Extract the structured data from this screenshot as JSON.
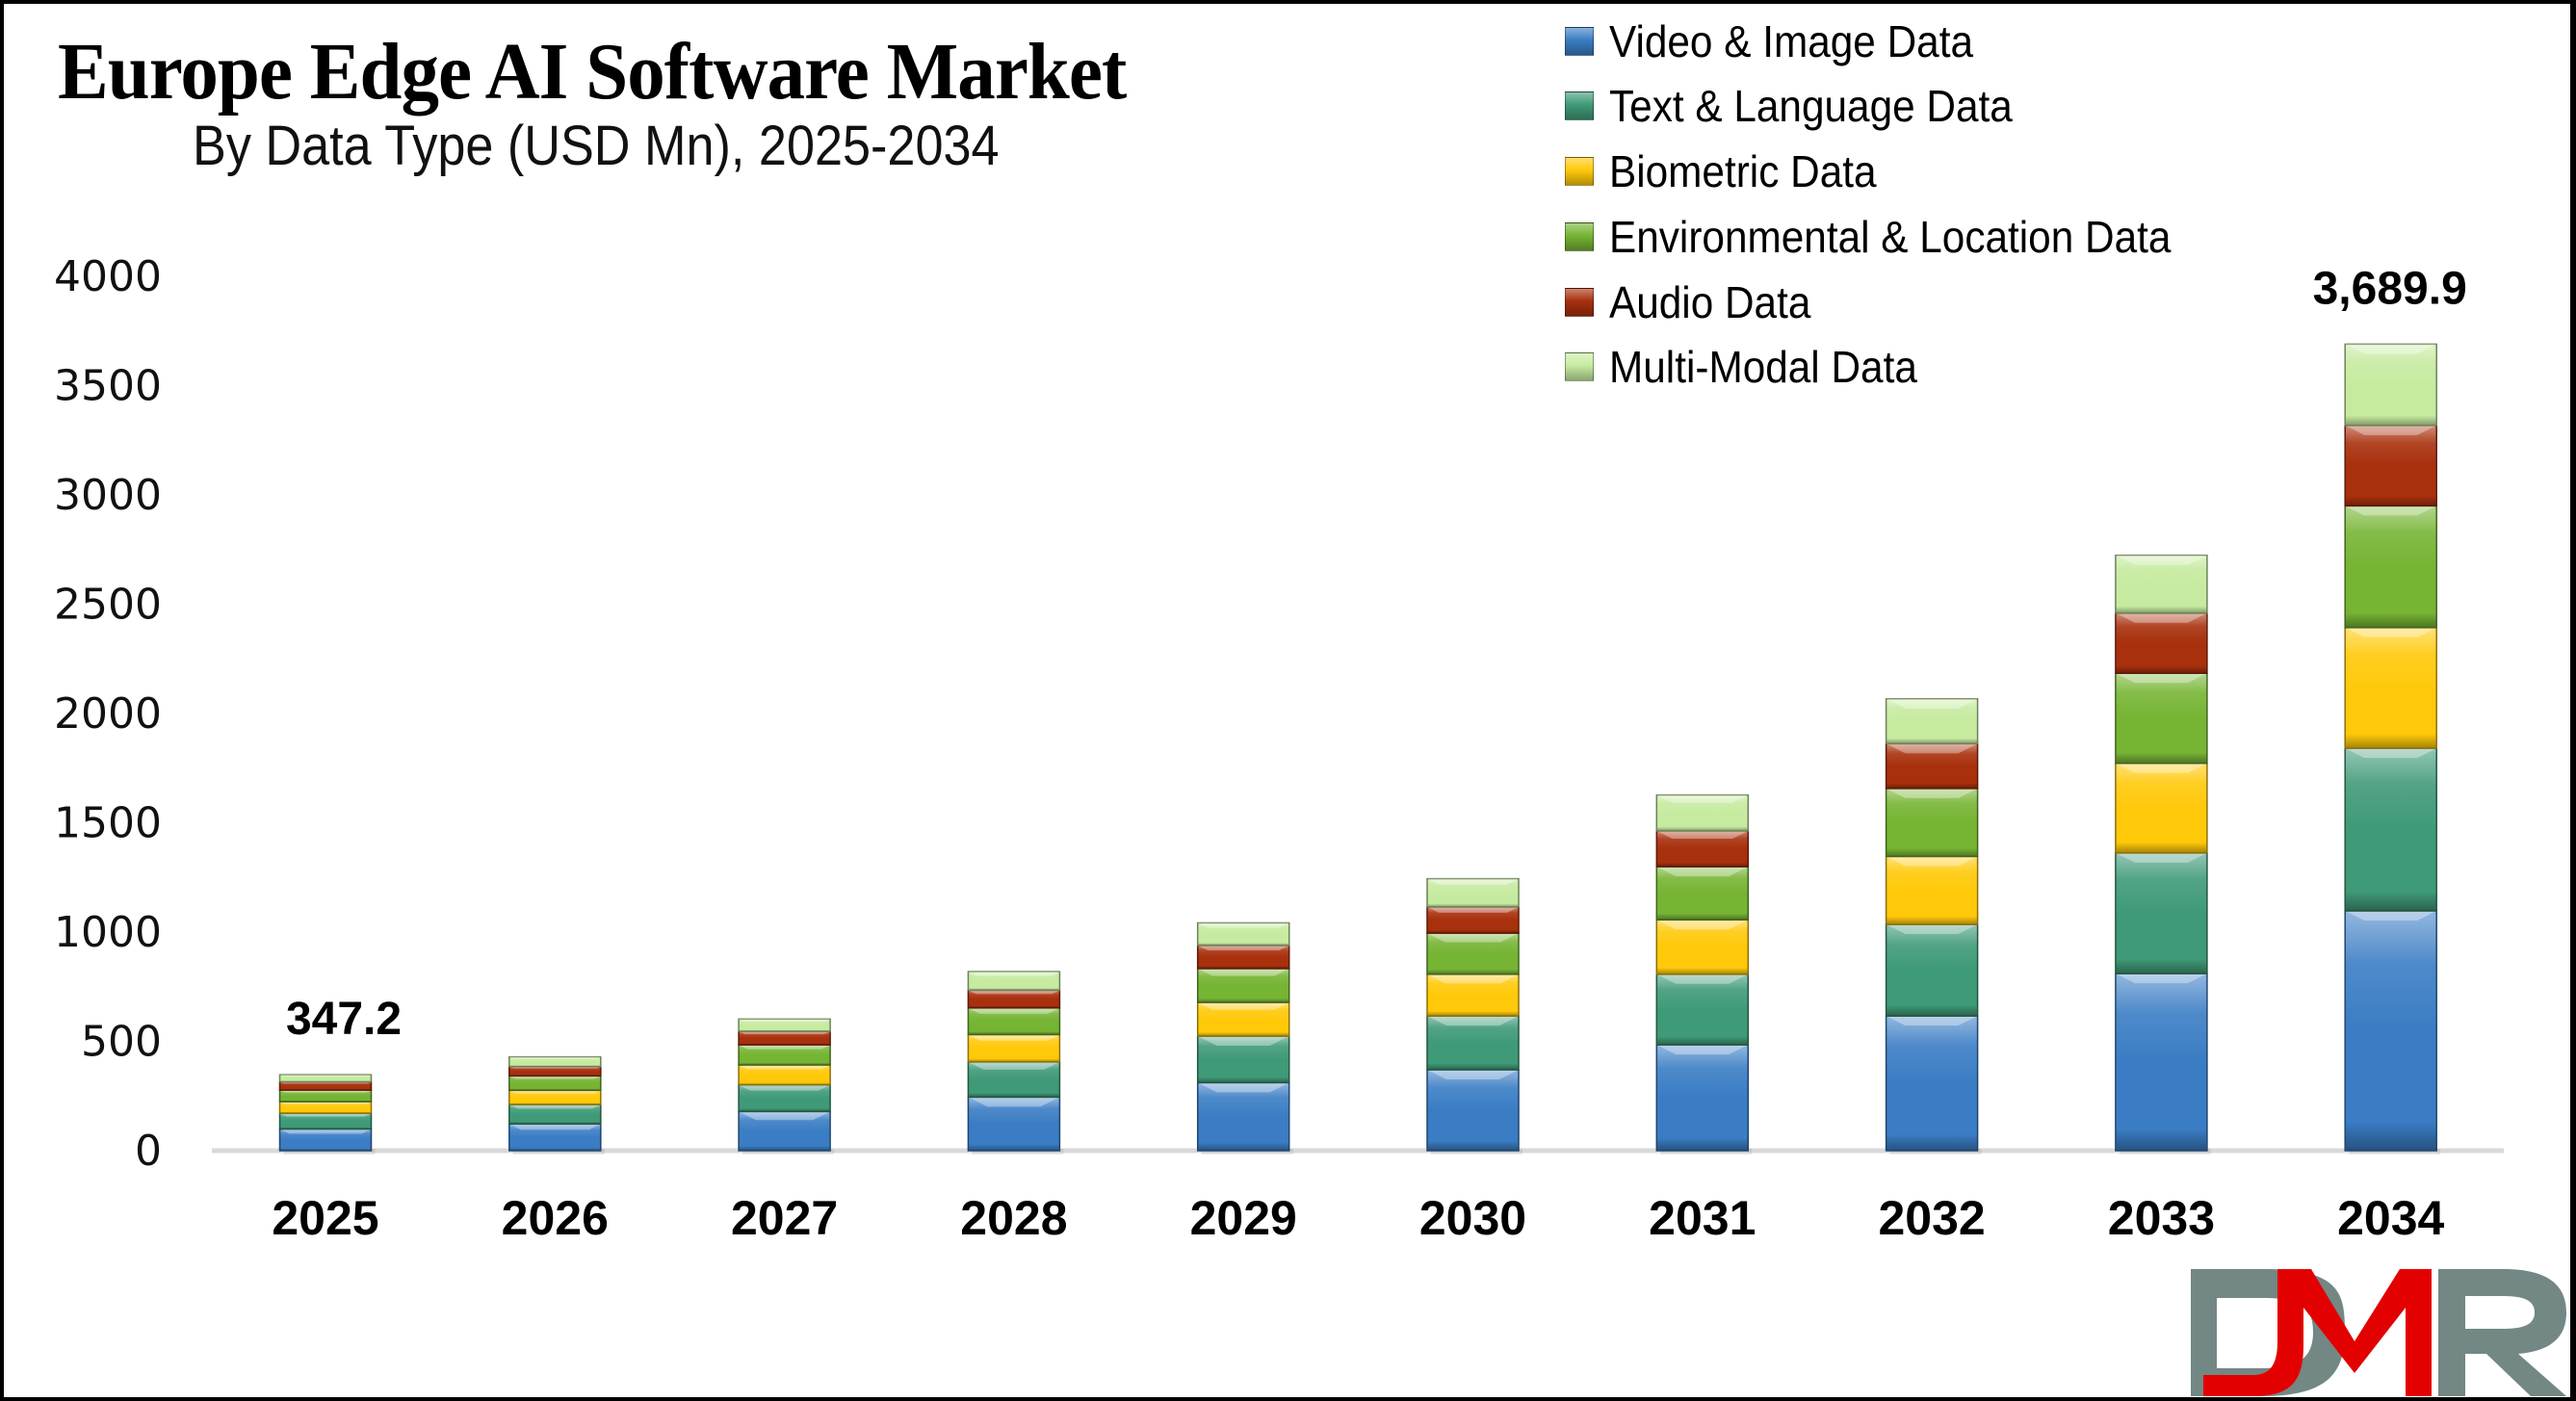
{
  "chart_data": {
    "type": "bar",
    "stacked": true,
    "title": "Europe Edge AI Software Market",
    "subtitle": "By Data Type (USD Mn), 2025-2034",
    "xlabel": "",
    "ylabel": "",
    "ylim": [
      0,
      4000
    ],
    "yticks": [
      0,
      500,
      1000,
      1500,
      2000,
      2500,
      3000,
      3500,
      4000
    ],
    "grid": false,
    "legend_position": "top-right",
    "categories": [
      "2025",
      "2026",
      "2027",
      "2028",
      "2029",
      "2030",
      "2031",
      "2032",
      "2033",
      "2034"
    ],
    "series": [
      {
        "name": "Video & Image Data",
        "color": "#3a7dc4",
        "values": [
          99,
          122,
          179,
          245,
          311,
          370,
          484,
          616,
          810,
          1097
        ]
      },
      {
        "name": "Text & Language Data",
        "color": "#3f9a77",
        "values": [
          72,
          89,
          122,
          161,
          213,
          246,
          323,
          419,
          552,
          744
        ]
      },
      {
        "name": "Biometric Data",
        "color": "#ffc90a",
        "values": [
          53,
          65,
          91,
          125,
          154,
          191,
          249,
          311,
          410,
          552
        ]
      },
      {
        "name": "Environmental & Location Data",
        "color": "#76b434",
        "values": [
          53,
          66,
          92,
          122,
          155,
          188,
          243,
          311,
          412,
          557
        ]
      },
      {
        "name": "Audio Data",
        "color": "#a8300d",
        "values": [
          38,
          43,
          62,
          81,
          106,
          120,
          164,
          205,
          275,
          368
        ]
      },
      {
        "name": "Multi-Modal Data",
        "color": "#c6eba0",
        "values": [
          32.2,
          44,
          56,
          85,
          103,
          129,
          164,
          205,
          265,
          371.9
        ]
      }
    ],
    "annotations": [
      {
        "category": "2025",
        "text": "347.2"
      },
      {
        "category": "2034",
        "text": "3,689.9"
      }
    ]
  },
  "logo": {
    "text_left": "D",
    "text_mid": "M",
    "text_right": "R",
    "grey": "#738784",
    "red": "#e30000"
  }
}
